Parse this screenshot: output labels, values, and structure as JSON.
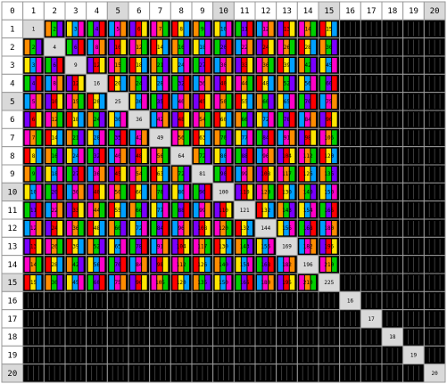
{
  "corner_label": "0",
  "column_headers": [
    "1",
    "2",
    "3",
    "4",
    "5",
    "6",
    "7",
    "8",
    "9",
    "10",
    "11",
    "12",
    "13",
    "14",
    "15",
    "16",
    "17",
    "18",
    "19",
    "20"
  ],
  "row_headers": [
    "1",
    "2",
    "3",
    "4",
    "5",
    "6",
    "7",
    "8",
    "9",
    "10",
    "11",
    "12",
    "13",
    "14",
    "15",
    "16",
    "17",
    "18",
    "19",
    "20"
  ],
  "highlighted_headers": [
    "5",
    "10",
    "15",
    "20"
  ],
  "colors": {
    "background": "#ffffff",
    "grid_line": "#9a9a9a",
    "header_fill": "#ffffff",
    "header_highlight": "#d9d9d9",
    "empty_cell": "#000000",
    "diagonal_cell": "#d9d9d9",
    "palette": [
      "#ff0000",
      "#ff8c00",
      "#ffe600",
      "#00d000",
      "#00a0ff",
      "#7a00ff",
      "#ff00c8"
    ]
  },
  "cells": [
    [
      "1",
      "2",
      "3",
      "4",
      "5",
      "6",
      "7",
      "8",
      "9",
      "10",
      "11",
      "12",
      "13",
      "14",
      "15"
    ],
    [
      "2",
      "4",
      "6",
      "8",
      "10",
      "12",
      "14",
      "16",
      "18",
      "20",
      "22",
      "24",
      "26",
      "28",
      "30"
    ],
    [
      "3",
      "6",
      "9",
      "12",
      "15",
      "18",
      "21",
      "24",
      "27",
      "30",
      "33",
      "36",
      "39",
      "42",
      "45"
    ],
    [
      "4",
      "8",
      "12",
      "16",
      "20",
      "24",
      "28",
      "32",
      "36",
      "40",
      "44",
      "48",
      "52",
      "56",
      "60"
    ],
    [
      "5",
      "10",
      "15",
      "20",
      "25",
      "30",
      "35",
      "40",
      "45",
      "50",
      "55",
      "60",
      "65",
      "70",
      "75"
    ],
    [
      "6",
      "12",
      "18",
      "24",
      "30",
      "36",
      "42",
      "48",
      "54",
      "60",
      "66",
      "72",
      "78",
      "84",
      "90"
    ],
    [
      "7",
      "14",
      "21",
      "28",
      "35",
      "42",
      "49",
      "56",
      "63",
      "70",
      "77",
      "84",
      "91",
      "98",
      "105"
    ],
    [
      "8",
      "16",
      "24",
      "32",
      "40",
      "48",
      "56",
      "64",
      "72",
      "80",
      "88",
      "96",
      "104",
      "112",
      "120"
    ],
    [
      "9",
      "18",
      "27",
      "36",
      "45",
      "54",
      "63",
      "72",
      "81",
      "90",
      "99",
      "108",
      "117",
      "126",
      "135"
    ],
    [
      "10",
      "20",
      "30",
      "40",
      "50",
      "60",
      "70",
      "80",
      "90",
      "100",
      "110",
      "120",
      "130",
      "140",
      "150"
    ],
    [
      "11",
      "22",
      "33",
      "44",
      "55",
      "66",
      "77",
      "88",
      "99",
      "110",
      "121",
      "132",
      "143",
      "154",
      "165"
    ],
    [
      "12",
      "24",
      "36",
      "48",
      "60",
      "72",
      "84",
      "96",
      "108",
      "120",
      "132",
      "144",
      "156",
      "168",
      "180"
    ],
    [
      "13",
      "26",
      "39",
      "52",
      "65",
      "78",
      "91",
      "104",
      "117",
      "130",
      "143",
      "156",
      "169",
      "182",
      "195"
    ],
    [
      "14",
      "28",
      "42",
      "56",
      "70",
      "84",
      "98",
      "112",
      "126",
      "140",
      "154",
      "168",
      "182",
      "196",
      "210"
    ],
    [
      "15",
      "30",
      "45",
      "60",
      "75",
      "90",
      "105",
      "120",
      "135",
      "150",
      "165",
      "180",
      "195",
      "210",
      "225"
    ]
  ],
  "diagonal_extra": [
    "16",
    "17",
    "18",
    "19",
    "20"
  ]
}
